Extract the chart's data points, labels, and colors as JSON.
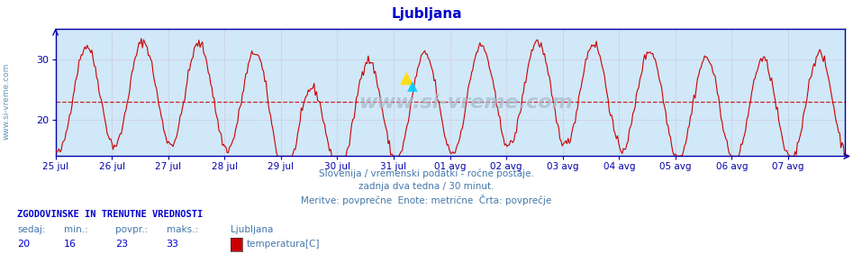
{
  "title": "Ljubljana",
  "title_color": "#0000cc",
  "bg_color": "#ffffff",
  "plot_bg_color": "#d0e8f8",
  "line_color": "#cc0000",
  "avg_line_color": "#cc0000",
  "avg_value": 23.0,
  "ymin": 14,
  "ymax": 35,
  "yticks": [
    20,
    30
  ],
  "x_labels": [
    "25 jul",
    "26 jul",
    "27 jul",
    "28 jul",
    "29 jul",
    "30 jul",
    "31 jul",
    "01 avg",
    "02 avg",
    "03 avg",
    "04 avg",
    "05 avg",
    "06 avg",
    "07 avg"
  ],
  "grid_color": "#cc88aa",
  "axis_color": "#0000aa",
  "watermark": "www.si-vreme.com",
  "watermark_color": "#aabbcc",
  "subtitle1": "Slovenija / vremenski podatki - ročne postaje.",
  "subtitle2": "zadnja dva tedna / 30 minut.",
  "subtitle3": "Meritve: povprečne  Enote: metrične  Črta: povprečje",
  "subtitle_color": "#4477aa",
  "stats_header": "ZGODOVINSKE IN TRENUTNE VREDNOSTI",
  "stats_header_color": "#0000cc",
  "stats_labels": [
    "sedaj:",
    "min.:",
    "povpr.:",
    "maks.:"
  ],
  "stats_values": [
    "20",
    "16",
    "23",
    "33"
  ],
  "stats_color": "#4477aa",
  "stats_values_color": "#0000cc",
  "legend_name": "Ljubljana",
  "legend_series": "temperatura[C]",
  "legend_color": "#cc0000",
  "watermark_logo_yellow": "#ffdd00",
  "watermark_logo_cyan": "#00ccff"
}
